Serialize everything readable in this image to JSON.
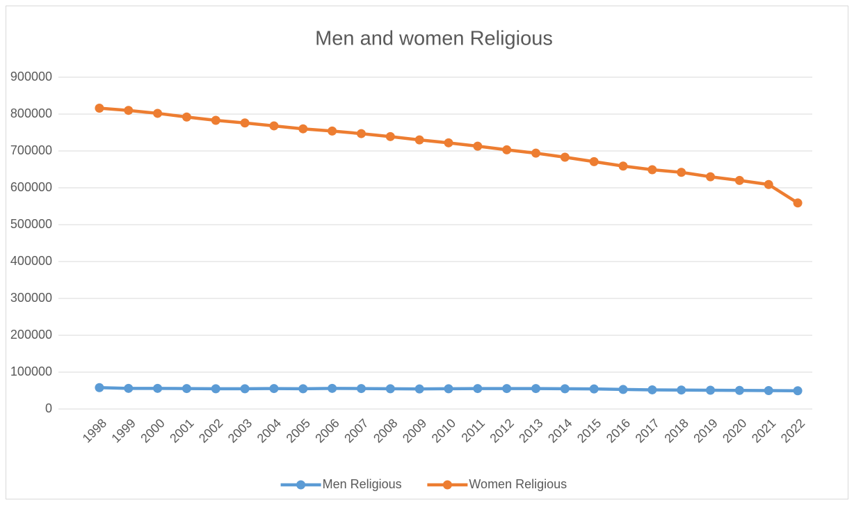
{
  "chart_data": {
    "type": "line",
    "title": "Men and women Religious",
    "categories": [
      "1998",
      "1999",
      "2000",
      "2001",
      "2002",
      "2003",
      "2004",
      "2005",
      "2006",
      "2007",
      "2008",
      "2009",
      "2010",
      "2011",
      "2012",
      "2013",
      "2014",
      "2015",
      "2016",
      "2017",
      "2018",
      "2019",
      "2020",
      "2021",
      "2022"
    ],
    "series": [
      {
        "name": "Men Religious",
        "color": "#5b9bd5",
        "values": [
          58000,
          56000,
          56000,
          55500,
          55000,
          55000,
          55500,
          55000,
          56000,
          55500,
          55000,
          54500,
          55000,
          55500,
          55500,
          55500,
          55000,
          54500,
          53000,
          52000,
          51500,
          51000,
          50500,
          50000,
          49500
        ]
      },
      {
        "name": "Women Religious",
        "color": "#ed7d31",
        "values": [
          816000,
          810000,
          802000,
          792000,
          783000,
          776000,
          768000,
          760000,
          754000,
          747000,
          739000,
          730000,
          722000,
          713000,
          703000,
          694000,
          683000,
          671000,
          659000,
          649000,
          642000,
          630000,
          620000,
          609000,
          559000
        ]
      }
    ],
    "ylim": [
      0,
      900000
    ],
    "yticks": [
      0,
      100000,
      200000,
      300000,
      400000,
      500000,
      600000,
      700000,
      800000,
      900000
    ],
    "grid": true,
    "legend": "bottom"
  }
}
